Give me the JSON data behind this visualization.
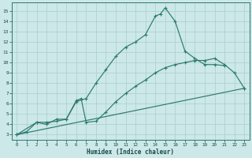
{
  "xlabel": "Humidex (Indice chaleur)",
  "bg_color": "#cce8e8",
  "line_color": "#2d7a6e",
  "grid_color": "#aacece",
  "xlim": [
    -0.5,
    23.5
  ],
  "ylim": [
    2.5,
    15.8
  ],
  "xticks": [
    0,
    1,
    2,
    3,
    4,
    5,
    6,
    7,
    8,
    9,
    10,
    11,
    12,
    13,
    14,
    15,
    16,
    17,
    18,
    19,
    20,
    21,
    22,
    23
  ],
  "yticks": [
    3,
    4,
    5,
    6,
    7,
    8,
    9,
    10,
    11,
    12,
    13,
    14,
    15
  ],
  "line1_x": [
    0,
    1,
    2,
    3,
    4,
    5,
    6,
    7,
    8,
    9,
    10,
    11,
    12,
    13,
    14,
    14.5,
    15,
    16,
    17,
    18,
    19,
    20,
    21
  ],
  "line1_y": [
    3,
    3.3,
    4.2,
    4.2,
    4.3,
    4.5,
    6.2,
    6.5,
    8.0,
    9.3,
    10.6,
    11.5,
    12.0,
    12.7,
    14.5,
    14.7,
    15.3,
    14.0,
    11.1,
    10.4,
    9.8,
    9.8,
    9.7
  ],
  "line2_x": [
    0,
    2,
    3,
    4,
    5,
    6,
    6.5,
    7,
    8,
    9,
    10,
    11,
    12,
    13,
    14,
    15,
    16,
    17,
    18,
    19,
    20,
    21,
    22,
    23
  ],
  "line2_y": [
    3,
    4.2,
    4.0,
    4.5,
    4.5,
    6.3,
    6.5,
    4.2,
    4.3,
    5.2,
    6.2,
    7.0,
    7.7,
    8.3,
    9.0,
    9.5,
    9.8,
    10.0,
    10.2,
    10.2,
    10.4,
    9.8,
    9.0,
    7.5
  ],
  "line3_x": [
    0,
    23
  ],
  "line3_y": [
    3,
    7.5
  ]
}
